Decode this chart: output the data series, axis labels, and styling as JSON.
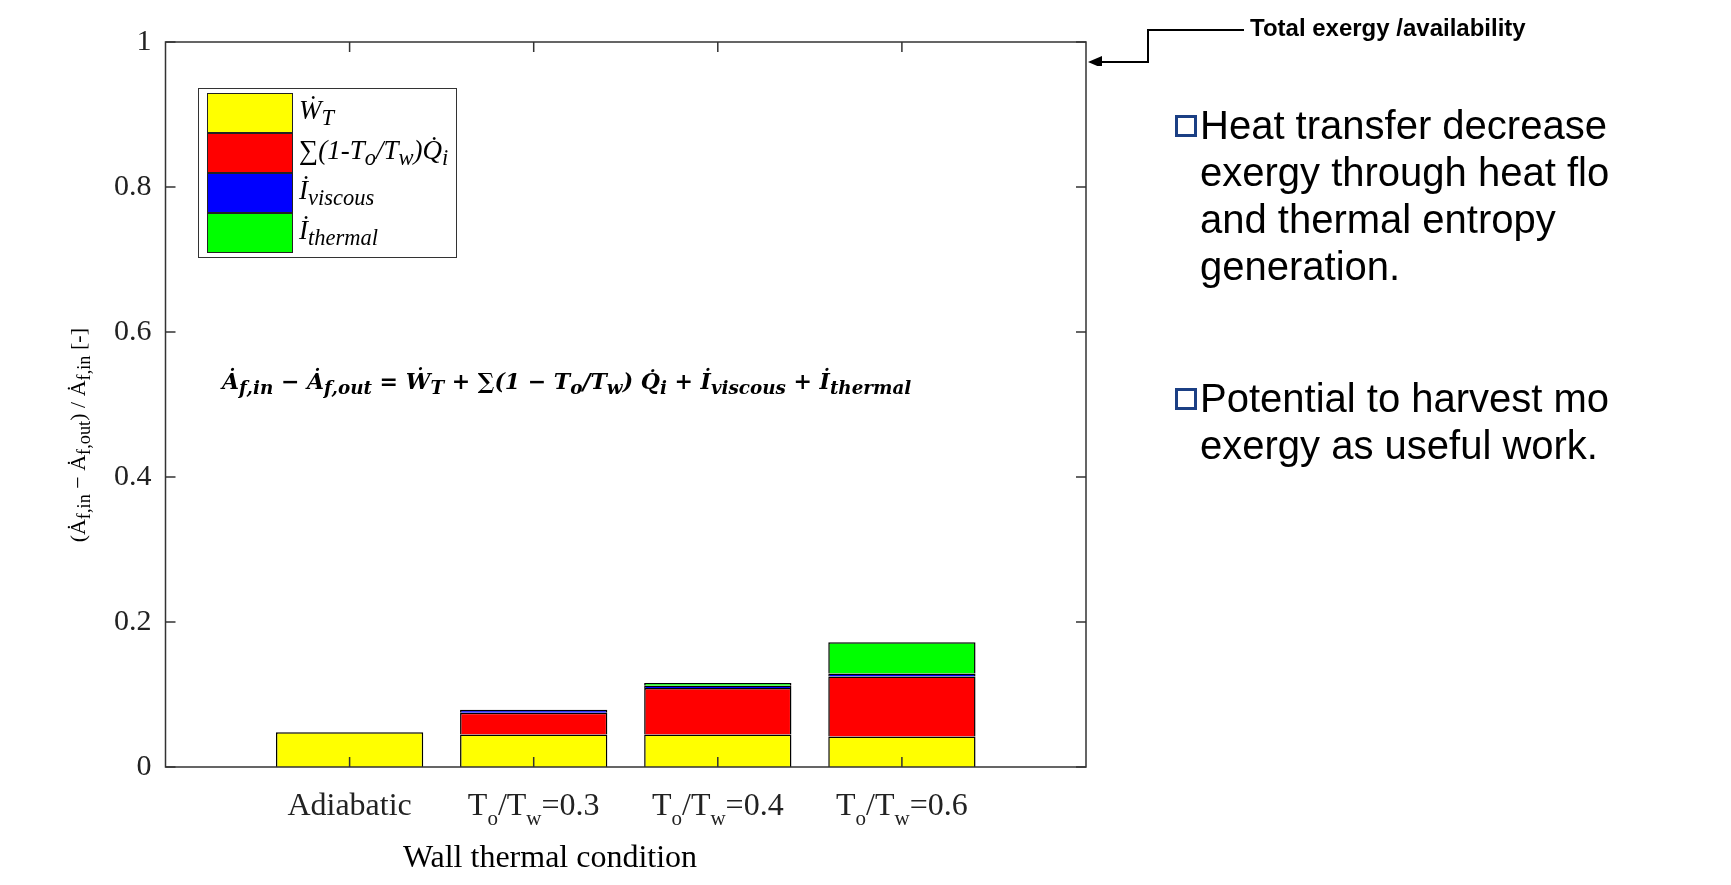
{
  "chart_data": {
    "type": "bar",
    "stacked": true,
    "categories": [
      "Adiabatic",
      "T$_{o}$/T$_{w}$=0.3",
      "T$_{o}$/T$_{w}$=0.4",
      "T$_{o}$/T$_{w}$=0.6"
    ],
    "series": [
      {
        "name": "Ẇ$_{T}$",
        "color": "#ffff00",
        "values": [
          0.048,
          0.045,
          0.045,
          0.042
        ]
      },
      {
        "name": "∑(1-T$_{o}$/T$_{w}$)Q̇$_{i}$",
        "color": "#ff0000",
        "values": [
          0,
          0.03,
          0.064,
          0.083
        ]
      },
      {
        "name": "İ$_{viscous}$",
        "color": "#0000ff",
        "values": [
          0,
          0.004,
          0.003,
          0.004
        ]
      },
      {
        "name": "İ$_{thermal}$",
        "color": "#00ff00",
        "values": [
          0,
          0,
          0.004,
          0.043
        ]
      }
    ],
    "xlabel": "Wall thermal condition",
    "ylabel": "(Ȧ$_{f,in}$ − Ȧ$_{f,out}$) / Ȧ$_{f,in}$  [-]",
    "ylim": [
      0,
      1
    ],
    "yticks": [
      0,
      0.2,
      0.4,
      0.6,
      0.8,
      1
    ],
    "grid": false,
    "legend": "top left",
    "annotations": [
      "Ȧ$_{f,in}$ − Ȧ$_{f,out}$ = Ẇ$_{T}$ + ∑(1 − T$_{o}$/T$_{w}$) Q̇$_{i}$ + İ$_{viscous}$ + İ$_{thermal}$",
      "Total exergy /availability",
      "Heat transfer decrease exergy through heat flo and thermal entropy generation.",
      "Potential to harvest mo exergy as useful work."
    ]
  }
}
